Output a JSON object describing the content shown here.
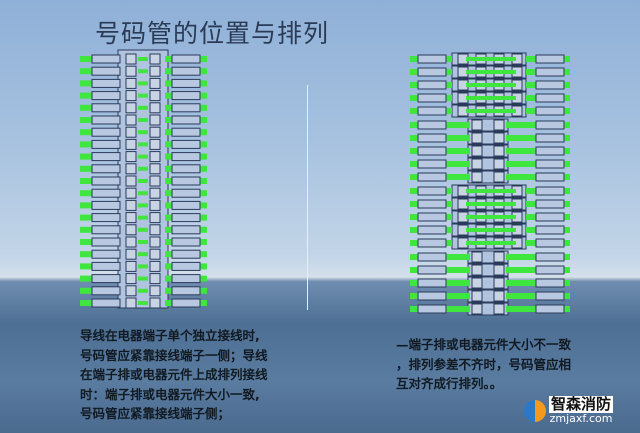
{
  "slide": {
    "title": "号码管的位置与排列",
    "left_text": "导线在电器端子单个独立接线时,\n号码管应紧靠接线端子一侧；导线\n在端子排或电器元件上成排列接线\n时：端子排或电器元件大小一致,\n号码管应紧靠接线端子侧；",
    "right_text": "—端子排或电器元件大小不一致\n，排列参差不齐时，号码管应相\n互对齐成行排列。。",
    "watermark": {
      "name": "智森消防",
      "url": "zmjaxf.com"
    }
  },
  "colors": {
    "wire": "#3ee63e",
    "terminal": "#2a3a5a",
    "label_fill": "#b8c8e0"
  }
}
